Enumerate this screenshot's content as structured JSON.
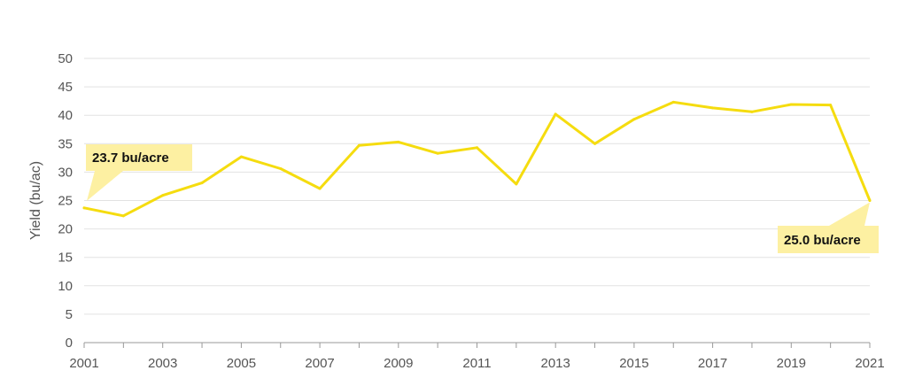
{
  "chart_data": {
    "type": "line",
    "title": "",
    "xlabel": "",
    "ylabel": "Yield (bu/ac)",
    "x": [
      2001,
      2002,
      2003,
      2004,
      2005,
      2006,
      2007,
      2008,
      2009,
      2010,
      2011,
      2012,
      2013,
      2014,
      2015,
      2016,
      2017,
      2018,
      2019,
      2020,
      2021
    ],
    "series": [
      {
        "values": [
          23.7,
          22.3,
          25.9,
          28.1,
          32.7,
          30.6,
          27.1,
          34.7,
          35.3,
          33.3,
          34.3,
          27.9,
          40.2,
          35.0,
          39.3,
          42.3,
          41.3,
          40.6,
          41.9,
          41.8,
          25.0
        ]
      }
    ],
    "xticks": [
      "2001",
      "2003",
      "2005",
      "2007",
      "2009",
      "2011",
      "2013",
      "2015",
      "2017",
      "2019",
      "2021"
    ],
    "yticks": [
      "0",
      "5",
      "10",
      "15",
      "20",
      "25",
      "30",
      "35",
      "40",
      "45",
      "50"
    ],
    "xlim": [
      2001,
      2021
    ],
    "ylim": [
      0,
      50
    ],
    "grid": true,
    "legend": "none",
    "annotations": [
      {
        "label": "23.7 bu/acre",
        "x": 2001,
        "y": 23.7
      },
      {
        "label": "25.0 bu/acre",
        "x": 2021,
        "y": 25.0
      }
    ],
    "colors": {
      "line": "#f5dc0f",
      "callout": "#fdf0a2",
      "grid": "#e2e2e2",
      "axis": "#999999",
      "text": "#555555"
    }
  }
}
